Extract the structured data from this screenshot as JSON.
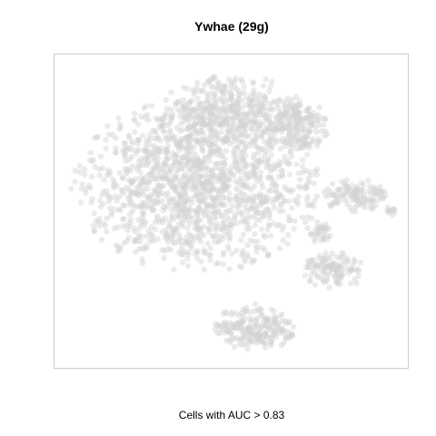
{
  "chart_data": {
    "type": "scatter",
    "title": "Ywhae (29g)",
    "caption": "Cells with AUC > 0.83",
    "xlabel": "",
    "ylabel": "",
    "axes_visible": false,
    "grid": false,
    "legend": "none",
    "point_color": "#d3d3d3",
    "point_opacity": 0.45,
    "frame_color": "#cccccc",
    "xlim": [
      0,
      100
    ],
    "ylim": [
      0,
      100
    ],
    "clusters": [
      {
        "name": "main",
        "cx": 40,
        "cy": 58,
        "rx": 33,
        "ry": 26,
        "n": 1400
      },
      {
        "name": "top",
        "cx": 50,
        "cy": 82,
        "rx": 19,
        "ry": 11,
        "n": 380
      },
      {
        "name": "top-right",
        "cx": 68,
        "cy": 77,
        "rx": 9,
        "ry": 9,
        "n": 170
      },
      {
        "name": "bottom",
        "cx": 57,
        "cy": 13,
        "rx": 11,
        "ry": 7,
        "n": 220
      },
      {
        "name": "right-upper",
        "cx": 85,
        "cy": 55,
        "rx": 9,
        "ry": 5,
        "n": 120
      },
      {
        "name": "right-lower",
        "cx": 79,
        "cy": 31,
        "rx": 8,
        "ry": 6,
        "n": 120
      },
      {
        "name": "right-mid",
        "cx": 75,
        "cy": 43,
        "rx": 3.5,
        "ry": 3.5,
        "n": 35
      },
      {
        "name": "far-right",
        "cx": 95,
        "cy": 50,
        "rx": 2,
        "ry": 1.5,
        "n": 12
      }
    ]
  }
}
